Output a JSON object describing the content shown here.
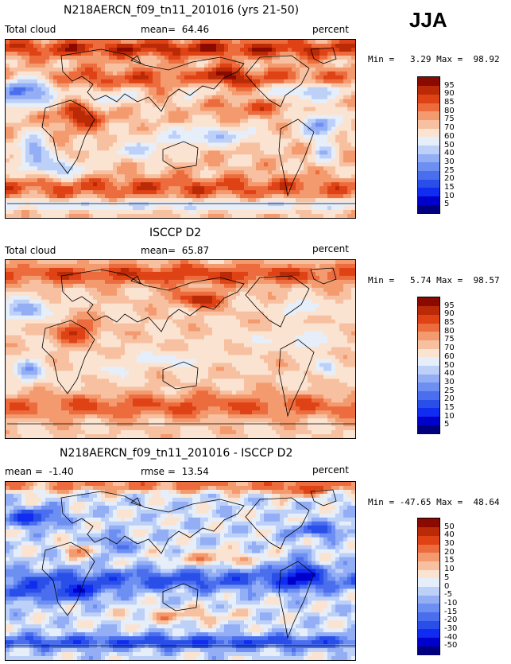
{
  "season": "JJA",
  "chart_data": [
    {
      "type": "heatmap",
      "title": "N218AERCN_f09_tn11_201016 (yrs 21-50)",
      "left_label": "Total cloud",
      "stat_label": "mean=",
      "stat_value": "64.46",
      "units": "percent",
      "min_label": "Min =",
      "min_value": "3.29",
      "max_label": "Max =",
      "max_value": "98.92",
      "levels": [
        "5",
        "10",
        "15",
        "20",
        "25",
        "30",
        "40",
        "50",
        "60",
        "70",
        "75",
        "80",
        "85",
        "90",
        "95"
      ],
      "colors": [
        "#00007f",
        "#0000cc",
        "#0f2cf0",
        "#2a4fe8",
        "#4a6eee",
        "#6d8ff2",
        "#93aef5",
        "#bcd0f8",
        "#e6eefa",
        "#fbe3d2",
        "#f7c1a1",
        "#f39a6e",
        "#ec6c3e",
        "#de4215",
        "#bb2a06",
        "#8b0a00"
      ],
      "scheme": "model"
    },
    {
      "type": "heatmap",
      "title": "ISCCP D2",
      "left_label": "Total cloud",
      "stat_label": "mean=",
      "stat_value": "65.87",
      "units": "percent",
      "min_label": "Min =",
      "min_value": "5.74",
      "max_label": "Max =",
      "max_value": "98.57",
      "levels": [
        "5",
        "10",
        "15",
        "20",
        "25",
        "30",
        "40",
        "50",
        "60",
        "70",
        "75",
        "80",
        "85",
        "90",
        "95"
      ],
      "colors": [
        "#00007f",
        "#0000cc",
        "#0f2cf0",
        "#2a4fe8",
        "#4a6eee",
        "#6d8ff2",
        "#93aef5",
        "#bcd0f8",
        "#e6eefa",
        "#fbe3d2",
        "#f7c1a1",
        "#f39a6e",
        "#ec6c3e",
        "#de4215",
        "#bb2a06",
        "#8b0a00"
      ],
      "scheme": "obs"
    },
    {
      "type": "heatmap",
      "title": "N218AERCN_f09_tn11_201016 - ISCCP D2",
      "left_label": "mean =",
      "left_value": "-1.40",
      "stat_label": "rmse =",
      "stat_value": "13.54",
      "units": "percent",
      "min_label": "Min =",
      "min_value": "-47.65",
      "max_label": "Max =",
      "max_value": "48.64",
      "levels": [
        "-50",
        "-40",
        "-30",
        "-20",
        "-15",
        "-10",
        "-5",
        "0",
        "5",
        "10",
        "15",
        "20",
        "30",
        "40",
        "50"
      ],
      "colors": [
        "#00007f",
        "#0000cc",
        "#0f2cf0",
        "#2a4fe8",
        "#4a6eee",
        "#6d8ff2",
        "#93aef5",
        "#bcd0f8",
        "#e6eefa",
        "#fbe3d2",
        "#f7c1a1",
        "#f39a6e",
        "#ec6c3e",
        "#de4215",
        "#bb2a06",
        "#8b0a00"
      ],
      "scheme": "diff"
    }
  ]
}
